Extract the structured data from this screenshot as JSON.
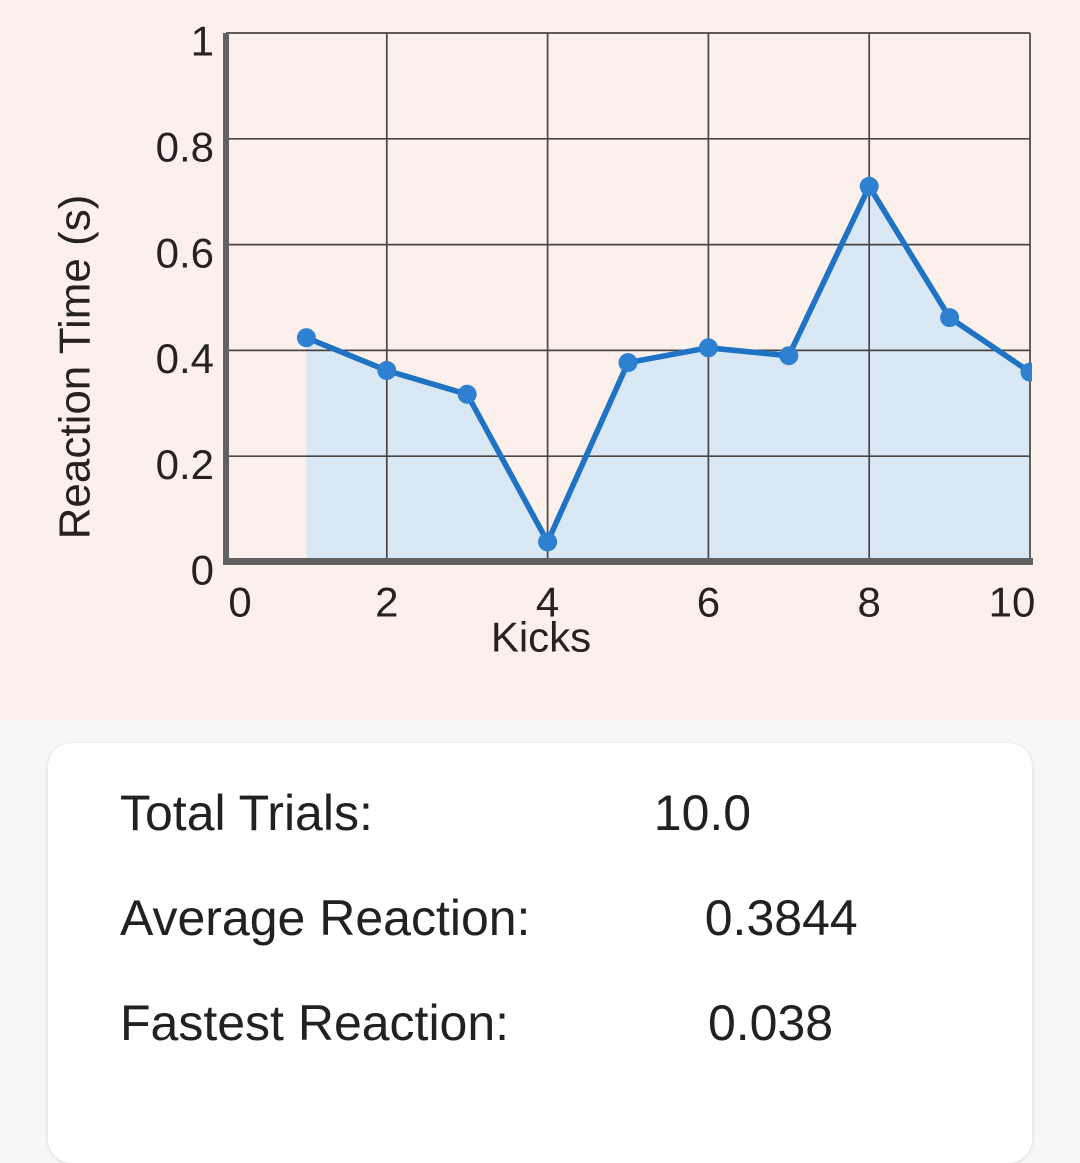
{
  "chart_data": {
    "type": "area",
    "title": "",
    "x": [
      1,
      2,
      3,
      4,
      5,
      6,
      7,
      8,
      9,
      10
    ],
    "y": [
      0.424,
      0.362,
      0.317,
      0.038,
      0.377,
      0.405,
      0.39,
      0.71,
      0.462,
      0.359
    ],
    "xlabel": "Kicks",
    "ylabel": "Reaction Time (s)",
    "xlim": [
      0,
      10
    ],
    "ylim": [
      0,
      1
    ],
    "x_ticks": [
      0,
      2,
      4,
      6,
      8,
      10
    ],
    "x_tick_labels": [
      "0",
      "2",
      "4",
      "6",
      "8",
      "10"
    ],
    "y_ticks": [
      0,
      0.2,
      0.4,
      0.6,
      0.8,
      1
    ],
    "y_tick_labels": [
      "0",
      "0.2",
      "0.4",
      "0.6",
      "0.8",
      "1"
    ],
    "grid": true,
    "legend_position": "none",
    "colors": {
      "line": "#1f73c5",
      "marker": "#2e80d0",
      "fill": "#dae7f4",
      "grid": "#4a4645",
      "axis": "#626061",
      "text": "#262220"
    }
  },
  "stats": {
    "rows": [
      {
        "id": "total-trials",
        "label": "Total Trials:",
        "value": "10.0"
      },
      {
        "id": "average-reaction",
        "label": "Average Reaction:",
        "value": "0.3844"
      },
      {
        "id": "fastest-reaction",
        "label": "Fastest Reaction:",
        "value": "0.038"
      }
    ]
  },
  "theme": {
    "chart_section_bg": "#fcf0ec",
    "stats_section_bg": "#f7f7f8",
    "card_bg": "#ffffff",
    "text_color": "#212121"
  }
}
